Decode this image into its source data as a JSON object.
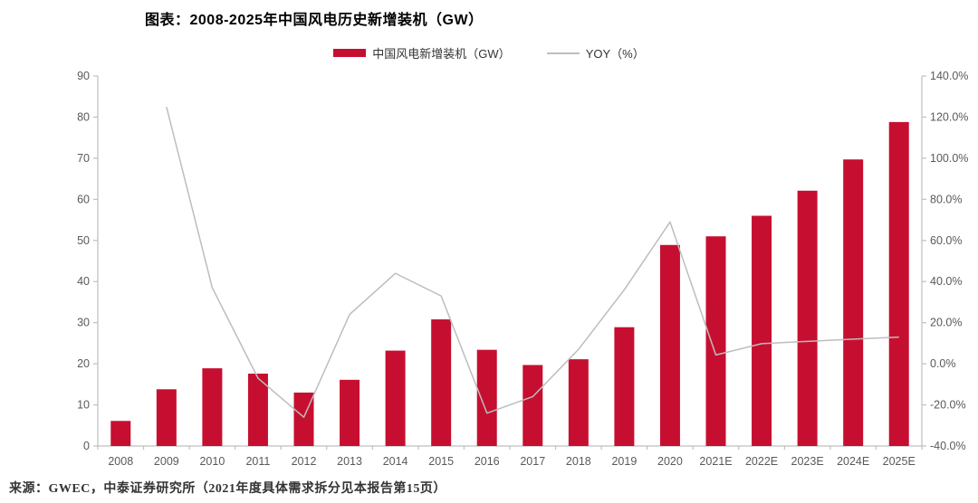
{
  "header": {
    "title": "图表：2008-2025年中国风电历史新增装机（GW）"
  },
  "legend": {
    "bar_label": "中国风电新增装机（GW）",
    "line_label": "YOY（%）"
  },
  "footer": {
    "source": "来源：GWEC，中泰证券研究所（2021年度具体需求拆分见本报告第15页）"
  },
  "colors": {
    "bar": "#C60F30",
    "line": "#BDBDBD",
    "axis": "#BFBFBF",
    "tick_label": "#595959",
    "background": "#ffffff"
  },
  "chart_data": {
    "type": "bar",
    "title": "图表：2008-2025年中国风电历史新增装机（GW）",
    "categories": [
      "2008",
      "2009",
      "2010",
      "2011",
      "2012",
      "2013",
      "2014",
      "2015",
      "2016",
      "2017",
      "2018",
      "2019",
      "2020",
      "2021E",
      "2022E",
      "2023E",
      "2024E",
      "2025E"
    ],
    "series": [
      {
        "name": "中国风电新增装机（GW）",
        "type": "bar",
        "axis": "left",
        "color": "#C60F30",
        "values": [
          6.1,
          13.8,
          18.9,
          17.6,
          13.0,
          16.1,
          23.2,
          30.8,
          23.4,
          19.7,
          21.1,
          28.9,
          48.9,
          51.0,
          56.0,
          62.1,
          69.7,
          78.8
        ]
      },
      {
        "name": "YOY（%）",
        "type": "line",
        "axis": "right",
        "color": "#BDBDBD",
        "values": [
          null,
          125.0,
          37.0,
          -7.0,
          -26.0,
          24.0,
          44.0,
          33.0,
          -24.0,
          -16.0,
          7.0,
          36.0,
          69.0,
          4.3,
          9.8,
          10.9,
          12.0,
          13.0
        ]
      }
    ],
    "left_axis": {
      "min": 0,
      "max": 90,
      "step": 10,
      "tick_labels": [
        "0",
        "10",
        "20",
        "30",
        "40",
        "50",
        "60",
        "70",
        "80",
        "90"
      ]
    },
    "right_axis": {
      "min": -40,
      "max": 140,
      "step": 20,
      "tick_labels": [
        "-40.0%",
        "-20.0%",
        "0.0%",
        "20.0%",
        "40.0%",
        "60.0%",
        "80.0%",
        "100.0%",
        "120.0%",
        "140.0%"
      ]
    },
    "xlabel": "",
    "ylabel": "",
    "grid": false,
    "legend_position": "top-center"
  }
}
